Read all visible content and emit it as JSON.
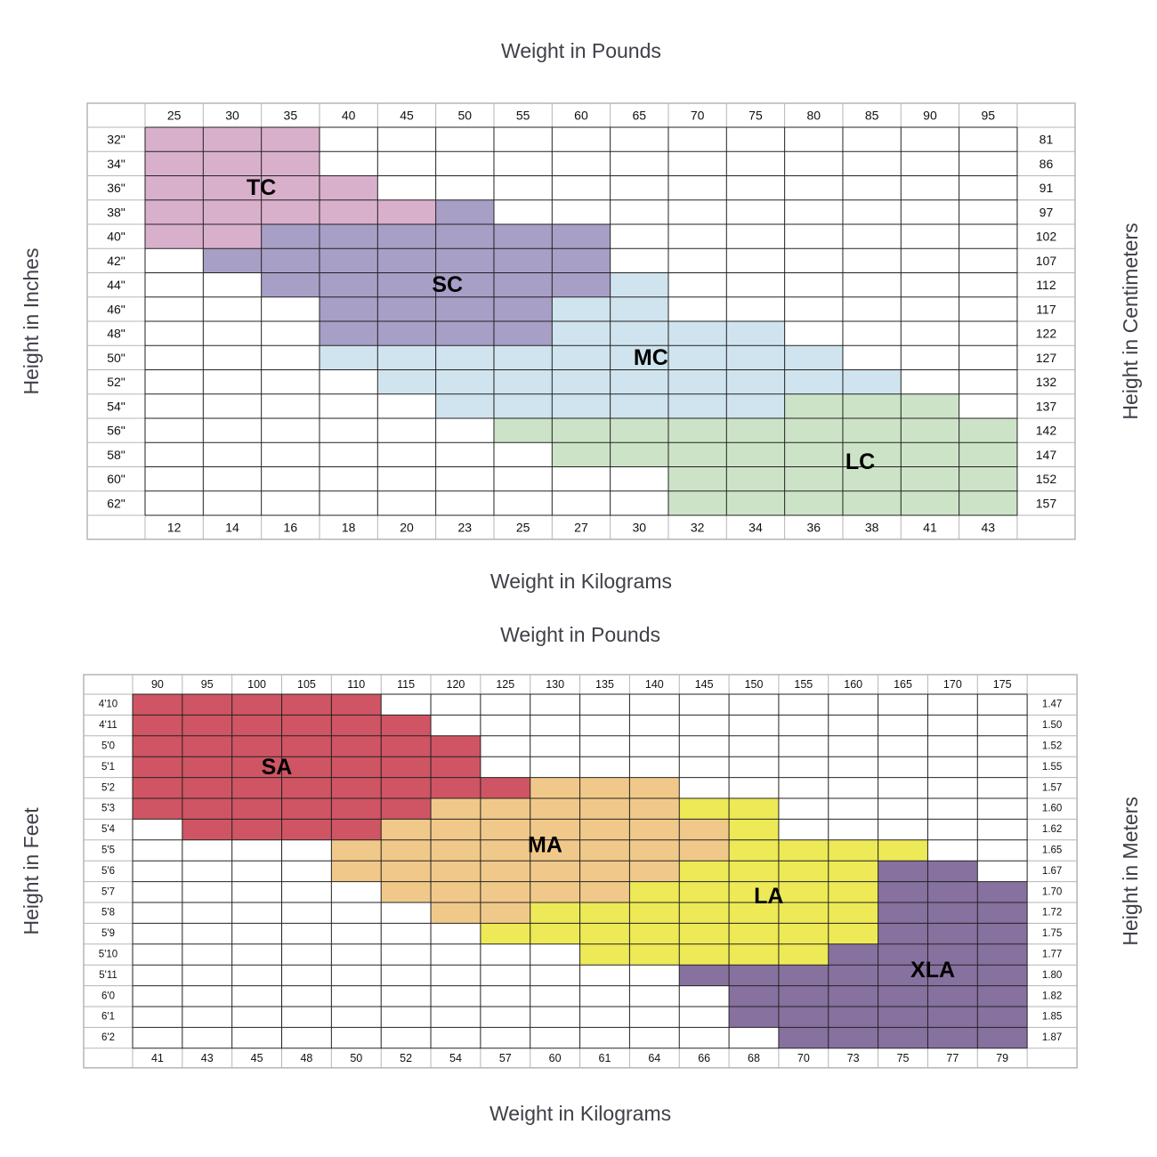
{
  "colors": {
    "grid": "#222222",
    "outer_border": "#b5b5b5",
    "TC": "#d9b0cb",
    "SC": "#a89fc6",
    "MC": "#cfe4ee",
    "LC": "#cde3c7",
    "SA": "#cf5564",
    "MA": "#f0c98a",
    "LA": "#ede957",
    "XLA": "#86719f"
  },
  "chart_data": [
    {
      "type": "heatmap",
      "top_axis_label": "Weight in Pounds",
      "bottom_axis_label": "Weight in Kilograms",
      "left_axis_label": "Height in Inches",
      "right_axis_label": "Height in Centimeters",
      "columns_lbs": [
        "25",
        "30",
        "35",
        "40",
        "45",
        "50",
        "55",
        "60",
        "65",
        "70",
        "75",
        "80",
        "85",
        "90",
        "95"
      ],
      "columns_kg": [
        "12",
        "14",
        "16",
        "18",
        "20",
        "23",
        "25",
        "27",
        "30",
        "32",
        "34",
        "36",
        "38",
        "41",
        "43"
      ],
      "rows_in": [
        "32\"",
        "34\"",
        "36\"",
        "38\"",
        "40\"",
        "42\"",
        "44\"",
        "46\"",
        "48\"",
        "50\"",
        "52\"",
        "54\"",
        "56\"",
        "58\"",
        "60\"",
        "62\""
      ],
      "rows_cm": [
        "81",
        "86",
        "91",
        "97",
        "102",
        "107",
        "112",
        "117",
        "122",
        "127",
        "132",
        "137",
        "142",
        "147",
        "152",
        "157"
      ],
      "zones": [
        {
          "name": "TC",
          "ranges": [
            [
              0,
              2
            ],
            [
              0,
              2
            ],
            [
              0,
              3
            ],
            [
              0,
              4
            ],
            [
              0,
              1
            ],
            null,
            null,
            null,
            null,
            null,
            null,
            null,
            null,
            null,
            null,
            null
          ]
        },
        {
          "name": "SC",
          "ranges": [
            null,
            null,
            null,
            [
              5,
              5
            ],
            [
              2,
              7
            ],
            [
              1,
              7
            ],
            [
              2,
              7
            ],
            [
              3,
              6
            ],
            [
              3,
              6
            ],
            null,
            null,
            null,
            null,
            null,
            null,
            null
          ]
        },
        {
          "name": "MC",
          "ranges": [
            null,
            null,
            null,
            null,
            null,
            null,
            [
              8,
              8
            ],
            [
              7,
              8
            ],
            [
              7,
              10
            ],
            [
              3,
              11
            ],
            [
              4,
              12
            ],
            [
              5,
              10
            ],
            null,
            null,
            null,
            null
          ]
        },
        {
          "name": "LC",
          "ranges": [
            null,
            null,
            null,
            null,
            null,
            null,
            null,
            null,
            null,
            null,
            null,
            [
              11,
              13
            ],
            [
              6,
              14
            ],
            [
              7,
              14
            ],
            [
              9,
              14
            ],
            [
              9,
              14
            ]
          ]
        }
      ],
      "zone_labels": [
        {
          "name": "TC",
          "row": 2,
          "col": 1.5
        },
        {
          "name": "SC",
          "row": 6,
          "col": 4.7
        },
        {
          "name": "MC",
          "row": 9,
          "col": 8.2
        },
        {
          "name": "LC",
          "row": 13.3,
          "col": 11.8
        }
      ]
    },
    {
      "type": "heatmap",
      "top_axis_label": "Weight in Pounds",
      "bottom_axis_label": "Weight in Kilograms",
      "left_axis_label": "Height in Feet",
      "right_axis_label": "Height in Meters",
      "columns_lbs": [
        "90",
        "95",
        "100",
        "105",
        "110",
        "115",
        "120",
        "125",
        "130",
        "135",
        "140",
        "145",
        "150",
        "155",
        "160",
        "165",
        "170",
        "175"
      ],
      "columns_kg": [
        "41",
        "43",
        "45",
        "48",
        "50",
        "52",
        "54",
        "57",
        "60",
        "61",
        "64",
        "66",
        "68",
        "70",
        "73",
        "75",
        "77",
        "79"
      ],
      "rows_ft": [
        "4'10",
        "4'11",
        "5'0",
        "5'1",
        "5'2",
        "5'3",
        "5'4",
        "5'5",
        "5'6",
        "5'7",
        "5'8",
        "5'9",
        "5'10",
        "5'11",
        "6'0",
        "6'1",
        "6'2"
      ],
      "rows_m": [
        "1.47",
        "1.50",
        "1.52",
        "1.55",
        "1.57",
        "1.60",
        "1.62",
        "1.65",
        "1.67",
        "1.70",
        "1.72",
        "1.75",
        "1.77",
        "1.80",
        "1.82",
        "1.85",
        "1.87"
      ],
      "zones": [
        {
          "name": "SA",
          "ranges": [
            [
              0,
              4
            ],
            [
              0,
              5
            ],
            [
              0,
              6
            ],
            [
              0,
              6
            ],
            [
              0,
              7
            ],
            [
              0,
              5
            ],
            [
              1,
              4
            ],
            null,
            null,
            null,
            null,
            null,
            null,
            null,
            null,
            null,
            null
          ]
        },
        {
          "name": "MA",
          "ranges": [
            null,
            null,
            null,
            null,
            [
              8,
              10
            ],
            [
              6,
              10
            ],
            [
              5,
              11
            ],
            [
              4,
              11
            ],
            [
              4,
              10
            ],
            [
              5,
              9
            ],
            [
              6,
              8
            ],
            null,
            null,
            null,
            null,
            null,
            null
          ]
        },
        {
          "name": "LA",
          "ranges": [
            null,
            null,
            null,
            null,
            null,
            [
              11,
              12
            ],
            [
              12,
              12
            ],
            [
              12,
              15
            ],
            [
              11,
              14
            ],
            [
              10,
              14
            ],
            [
              8,
              14
            ],
            [
              7,
              14
            ],
            [
              9,
              13
            ],
            null,
            null,
            null,
            null
          ]
        },
        {
          "name": "XLA",
          "ranges": [
            null,
            null,
            null,
            null,
            null,
            null,
            null,
            null,
            [
              15,
              16
            ],
            [
              15,
              17
            ],
            [
              15,
              17
            ],
            [
              15,
              17
            ],
            [
              14,
              17
            ],
            [
              11,
              17
            ],
            [
              12,
              17
            ],
            [
              12,
              17
            ],
            [
              13,
              17
            ]
          ]
        }
      ],
      "zone_labels": [
        {
          "name": "SA",
          "row": 3,
          "col": 2.4
        },
        {
          "name": "MA",
          "row": 6.75,
          "col": 7.8
        },
        {
          "name": "LA",
          "row": 9.2,
          "col": 12.3
        },
        {
          "name": "XLA",
          "row": 12.75,
          "col": 15.6
        }
      ]
    }
  ]
}
